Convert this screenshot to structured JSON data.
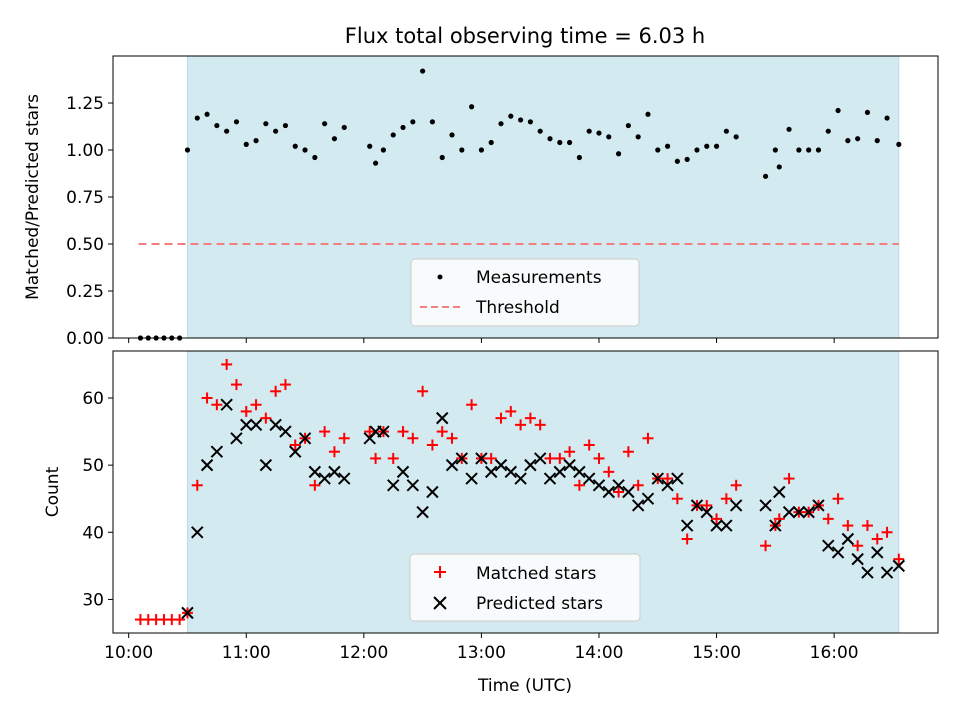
{
  "chart_data": [
    {
      "type": "scatter",
      "title": "Flux total observing time = 6.03 h",
      "xlabel": "",
      "ylabel": "Matched/Predicted stars",
      "xlim": [
        "09:52",
        "16:53"
      ],
      "ylim": [
        0,
        1.5
      ],
      "yticks": [
        0.0,
        0.25,
        0.5,
        0.75,
        1.0,
        1.25
      ],
      "ytick_labels": [
        "0.00",
        "0.25",
        "0.50",
        "0.75",
        "1.00",
        "1.25"
      ],
      "shaded_interval": [
        "10:30",
        "16:33"
      ],
      "threshold": {
        "name": "Threshold",
        "value": 0.5,
        "x_range": [
          "10:05",
          "16:33"
        ],
        "color": "#f08080",
        "style": "dashed"
      },
      "legend": {
        "placement": "lower-center",
        "entries": [
          "Measurements",
          "Threshold"
        ]
      },
      "series": [
        {
          "name": "Measurements",
          "color": "#000000",
          "marker": "dot",
          "points": [
            [
              "10:06",
              0.0
            ],
            [
              "10:10",
              0.0
            ],
            [
              "10:14",
              0.0
            ],
            [
              "10:18",
              0.0
            ],
            [
              "10:22",
              0.0
            ],
            [
              "10:26",
              0.0
            ],
            [
              "10:30",
              1.0
            ],
            [
              "10:35",
              1.17
            ],
            [
              "10:40",
              1.19
            ],
            [
              "10:45",
              1.13
            ],
            [
              "10:50",
              1.1
            ],
            [
              "10:55",
              1.15
            ],
            [
              "11:00",
              1.03
            ],
            [
              "11:05",
              1.05
            ],
            [
              "11:10",
              1.14
            ],
            [
              "11:15",
              1.1
            ],
            [
              "11:20",
              1.13
            ],
            [
              "11:25",
              1.02
            ],
            [
              "11:30",
              1.0
            ],
            [
              "11:35",
              0.96
            ],
            [
              "11:40",
              1.14
            ],
            [
              "11:45",
              1.06
            ],
            [
              "11:50",
              1.12
            ],
            [
              "12:03",
              1.02
            ],
            [
              "12:06",
              0.93
            ],
            [
              "12:10",
              1.0
            ],
            [
              "12:15",
              1.08
            ],
            [
              "12:20",
              1.12
            ],
            [
              "12:25",
              1.15
            ],
            [
              "12:30",
              1.42
            ],
            [
              "12:35",
              1.15
            ],
            [
              "12:40",
              0.96
            ],
            [
              "12:45",
              1.08
            ],
            [
              "12:50",
              1.0
            ],
            [
              "12:55",
              1.23
            ],
            [
              "13:00",
              1.0
            ],
            [
              "13:05",
              1.04
            ],
            [
              "13:10",
              1.14
            ],
            [
              "13:15",
              1.18
            ],
            [
              "13:20",
              1.16
            ],
            [
              "13:25",
              1.15
            ],
            [
              "13:30",
              1.1
            ],
            [
              "13:35",
              1.06
            ],
            [
              "13:40",
              1.04
            ],
            [
              "13:45",
              1.04
            ],
            [
              "13:50",
              0.96
            ],
            [
              "13:55",
              1.1
            ],
            [
              "14:00",
              1.09
            ],
            [
              "14:05",
              1.07
            ],
            [
              "14:10",
              0.98
            ],
            [
              "14:15",
              1.13
            ],
            [
              "14:20",
              1.07
            ],
            [
              "14:25",
              1.19
            ],
            [
              "14:30",
              1.0
            ],
            [
              "14:35",
              1.02
            ],
            [
              "14:40",
              0.94
            ],
            [
              "14:45",
              0.95
            ],
            [
              "14:50",
              1.0
            ],
            [
              "14:55",
              1.02
            ],
            [
              "15:00",
              1.02
            ],
            [
              "15:05",
              1.1
            ],
            [
              "15:10",
              1.07
            ],
            [
              "15:25",
              0.86
            ],
            [
              "15:30",
              1.0
            ],
            [
              "15:32",
              0.91
            ],
            [
              "15:37",
              1.11
            ],
            [
              "15:42",
              1.0
            ],
            [
              "15:47",
              1.0
            ],
            [
              "15:52",
              1.0
            ],
            [
              "15:57",
              1.1
            ],
            [
              "16:02",
              1.21
            ],
            [
              "16:07",
              1.05
            ],
            [
              "16:12",
              1.06
            ],
            [
              "16:17",
              1.2
            ],
            [
              "16:22",
              1.05
            ],
            [
              "16:27",
              1.17
            ],
            [
              "16:33",
              1.03
            ]
          ]
        }
      ]
    },
    {
      "type": "scatter",
      "title": "",
      "xlabel": "Time (UTC)",
      "ylabel": "Count",
      "xlim": [
        "09:52",
        "16:53"
      ],
      "ylim": [
        25,
        67
      ],
      "yticks": [
        30,
        40,
        50,
        60
      ],
      "xticks": [
        "10:00",
        "11:00",
        "12:00",
        "13:00",
        "14:00",
        "15:00",
        "16:00"
      ],
      "shaded_interval": [
        "10:30",
        "16:33"
      ],
      "legend": {
        "placement": "lower-center",
        "entries": [
          "Matched stars",
          "Predicted stars"
        ]
      },
      "series": [
        {
          "name": "Matched stars",
          "color": "#ff0000",
          "marker": "plus",
          "points": [
            [
              "10:06",
              27
            ],
            [
              "10:10",
              27
            ],
            [
              "10:14",
              27
            ],
            [
              "10:18",
              27
            ],
            [
              "10:22",
              27
            ],
            [
              "10:26",
              27
            ],
            [
              "10:30",
              28
            ],
            [
              "10:35",
              47
            ],
            [
              "10:40",
              60
            ],
            [
              "10:45",
              59
            ],
            [
              "10:50",
              65
            ],
            [
              "10:55",
              62
            ],
            [
              "11:00",
              58
            ],
            [
              "11:05",
              59
            ],
            [
              "11:10",
              57
            ],
            [
              "11:15",
              61
            ],
            [
              "11:20",
              62
            ],
            [
              "11:25",
              53
            ],
            [
              "11:30",
              54
            ],
            [
              "11:35",
              47
            ],
            [
              "11:40",
              55
            ],
            [
              "11:45",
              52
            ],
            [
              "11:50",
              54
            ],
            [
              "12:03",
              55
            ],
            [
              "12:06",
              51
            ],
            [
              "12:10",
              55
            ],
            [
              "12:15",
              51
            ],
            [
              "12:20",
              55
            ],
            [
              "12:25",
              54
            ],
            [
              "12:30",
              61
            ],
            [
              "12:35",
              53
            ],
            [
              "12:40",
              55
            ],
            [
              "12:45",
              54
            ],
            [
              "12:50",
              51
            ],
            [
              "12:55",
              59
            ],
            [
              "13:00",
              51
            ],
            [
              "13:05",
              51
            ],
            [
              "13:10",
              57
            ],
            [
              "13:15",
              58
            ],
            [
              "13:20",
              56
            ],
            [
              "13:25",
              57
            ],
            [
              "13:30",
              56
            ],
            [
              "13:35",
              51
            ],
            [
              "13:40",
              51
            ],
            [
              "13:45",
              52
            ],
            [
              "13:50",
              47
            ],
            [
              "13:55",
              53
            ],
            [
              "14:00",
              51
            ],
            [
              "14:05",
              49
            ],
            [
              "14:10",
              46
            ],
            [
              "14:15",
              52
            ],
            [
              "14:20",
              47
            ],
            [
              "14:25",
              54
            ],
            [
              "14:30",
              48
            ],
            [
              "14:35",
              48
            ],
            [
              "14:40",
              45
            ],
            [
              "14:45",
              39
            ],
            [
              "14:50",
              44
            ],
            [
              "14:55",
              44
            ],
            [
              "15:00",
              42
            ],
            [
              "15:05",
              45
            ],
            [
              "15:10",
              47
            ],
            [
              "15:25",
              38
            ],
            [
              "15:30",
              41
            ],
            [
              "15:32",
              42
            ],
            [
              "15:37",
              48
            ],
            [
              "15:42",
              43
            ],
            [
              "15:47",
              43
            ],
            [
              "15:52",
              44
            ],
            [
              "15:57",
              42
            ],
            [
              "16:02",
              45
            ],
            [
              "16:07",
              41
            ],
            [
              "16:12",
              38
            ],
            [
              "16:17",
              41
            ],
            [
              "16:22",
              39
            ],
            [
              "16:27",
              40
            ],
            [
              "16:33",
              36
            ]
          ]
        },
        {
          "name": "Predicted stars",
          "color": "#000000",
          "marker": "x",
          "points": [
            [
              "10:30",
              28
            ],
            [
              "10:35",
              40
            ],
            [
              "10:40",
              50
            ],
            [
              "10:45",
              52
            ],
            [
              "10:50",
              59
            ],
            [
              "10:55",
              54
            ],
            [
              "11:00",
              56
            ],
            [
              "11:05",
              56
            ],
            [
              "11:10",
              50
            ],
            [
              "11:15",
              56
            ],
            [
              "11:20",
              55
            ],
            [
              "11:25",
              52
            ],
            [
              "11:30",
              54
            ],
            [
              "11:35",
              49
            ],
            [
              "11:40",
              48
            ],
            [
              "11:45",
              49
            ],
            [
              "11:50",
              48
            ],
            [
              "12:03",
              54
            ],
            [
              "12:06",
              55
            ],
            [
              "12:10",
              55
            ],
            [
              "12:15",
              47
            ],
            [
              "12:20",
              49
            ],
            [
              "12:25",
              47
            ],
            [
              "12:30",
              43
            ],
            [
              "12:35",
              46
            ],
            [
              "12:40",
              57
            ],
            [
              "12:45",
              50
            ],
            [
              "12:50",
              51
            ],
            [
              "12:55",
              48
            ],
            [
              "13:00",
              51
            ],
            [
              "13:05",
              49
            ],
            [
              "13:10",
              50
            ],
            [
              "13:15",
              49
            ],
            [
              "13:20",
              48
            ],
            [
              "13:25",
              50
            ],
            [
              "13:30",
              51
            ],
            [
              "13:35",
              48
            ],
            [
              "13:40",
              49
            ],
            [
              "13:45",
              50
            ],
            [
              "13:50",
              49
            ],
            [
              "13:55",
              48
            ],
            [
              "14:00",
              47
            ],
            [
              "14:05",
              46
            ],
            [
              "14:10",
              47
            ],
            [
              "14:15",
              46
            ],
            [
              "14:20",
              44
            ],
            [
              "14:25",
              45
            ],
            [
              "14:30",
              48
            ],
            [
              "14:35",
              47
            ],
            [
              "14:40",
              48
            ],
            [
              "14:45",
              41
            ],
            [
              "14:50",
              44
            ],
            [
              "14:55",
              43
            ],
            [
              "15:00",
              41
            ],
            [
              "15:05",
              41
            ],
            [
              "15:10",
              44
            ],
            [
              "15:25",
              44
            ],
            [
              "15:30",
              41
            ],
            [
              "15:32",
              46
            ],
            [
              "15:37",
              43
            ],
            [
              "15:42",
              43
            ],
            [
              "15:47",
              43
            ],
            [
              "15:52",
              44
            ],
            [
              "15:57",
              38
            ],
            [
              "16:02",
              37
            ],
            [
              "16:07",
              39
            ],
            [
              "16:12",
              36
            ],
            [
              "16:17",
              34
            ],
            [
              "16:22",
              37
            ],
            [
              "16:27",
              34
            ],
            [
              "16:33",
              35
            ]
          ]
        }
      ]
    }
  ],
  "colors": {
    "shade": "#d4eaf1",
    "shade_edge": "#b8dde8"
  }
}
